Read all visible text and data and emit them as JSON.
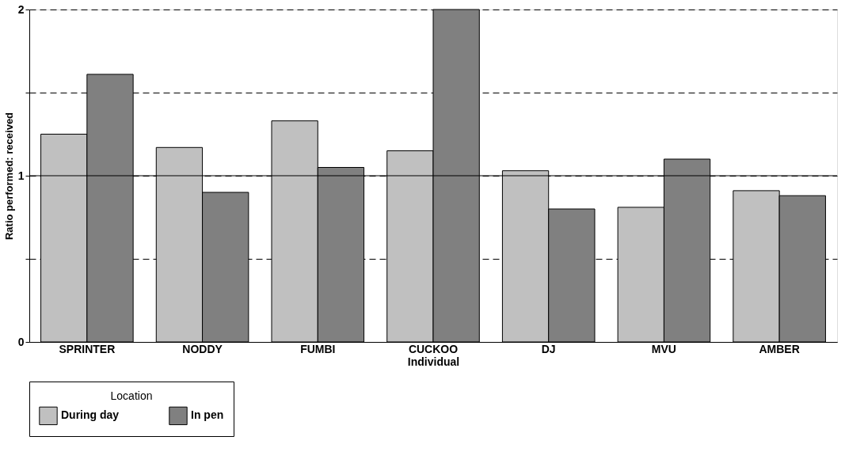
{
  "chart_data": {
    "type": "bar",
    "xlabel": "Individual",
    "ylabel": "Ratio performed: received",
    "legend_title": "Location",
    "categories": [
      "SPRINTER",
      "NODDY",
      "FUMBI",
      "CUCKOO",
      "DJ",
      "MVU",
      "AMBER"
    ],
    "series": [
      {
        "name": "During day",
        "color": "#c0c0c0",
        "values": [
          1.25,
          1.17,
          1.33,
          1.15,
          1.03,
          0.81,
          0.91
        ]
      },
      {
        "name": "In pen",
        "color": "#808080",
        "values": [
          1.61,
          0.9,
          1.05,
          2.0,
          0.8,
          1.1,
          0.88
        ]
      }
    ],
    "ylim": [
      0,
      2
    ],
    "yticks": [
      0,
      {
        "value": 0.5,
        "label": null
      },
      1,
      {
        "value": 1.5,
        "label": null
      },
      2
    ],
    "ref_lines": [
      {
        "axis": "y",
        "value": 1,
        "label": null,
        "color": "#000000",
        "line_style": "solid"
      }
    ],
    "grid": "y",
    "legend": "bottom"
  }
}
